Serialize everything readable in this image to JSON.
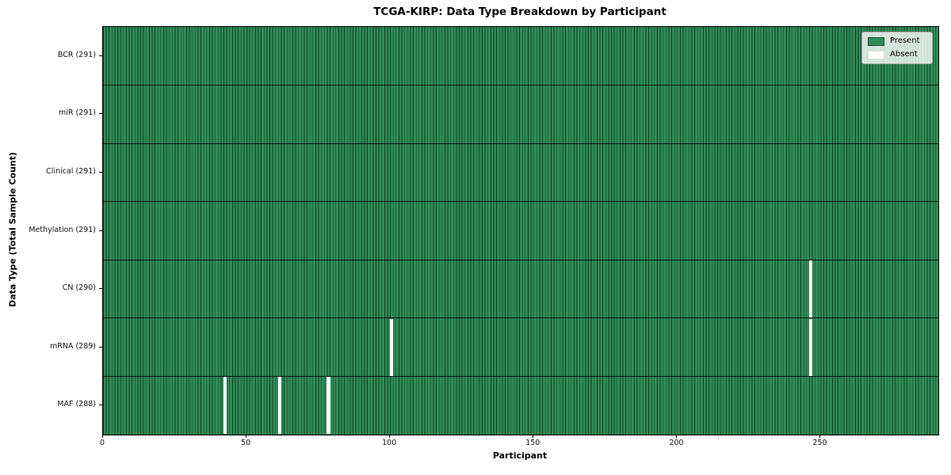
{
  "chart_data": {
    "type": "heatmap",
    "title": "TCGA-KIRP: Data Type Breakdown by Participant",
    "xlabel": "Participant",
    "ylabel": "Data Type (Total Sample Count)",
    "x_ticks": [
      0,
      50,
      100,
      150,
      200,
      250
    ],
    "x_axis_range": [
      0,
      291
    ],
    "n_participants": 291,
    "grid": false,
    "legend_position": "upper right",
    "rows": [
      {
        "label": "BCR (291)",
        "data_type": "BCR",
        "total_samples": 291,
        "absent_participants": []
      },
      {
        "label": "miR (291)",
        "data_type": "miR",
        "total_samples": 291,
        "absent_participants": []
      },
      {
        "label": "Clinical (291)",
        "data_type": "Clinical",
        "total_samples": 291,
        "absent_participants": []
      },
      {
        "label": "Methylation (291)",
        "data_type": "Methylation",
        "total_samples": 291,
        "absent_participants": []
      },
      {
        "label": "CN (290)",
        "data_type": "CN",
        "total_samples": 290,
        "absent_participants": [
          246
        ]
      },
      {
        "label": "mRNA (289)",
        "data_type": "mRNA",
        "total_samples": 289,
        "absent_participants": [
          100,
          246
        ]
      },
      {
        "label": "MAF (288)",
        "data_type": "MAF",
        "total_samples": 288,
        "absent_participants": [
          42,
          61,
          78
        ]
      }
    ],
    "legend": [
      {
        "label": "Present",
        "color": "#2e8b57"
      },
      {
        "label": "Absent",
        "color": "#ffffff"
      }
    ],
    "colors": {
      "present": "#2e8b57",
      "absent": "#ffffff",
      "bar_edge": "#10331f",
      "axis": "#000000"
    }
  }
}
